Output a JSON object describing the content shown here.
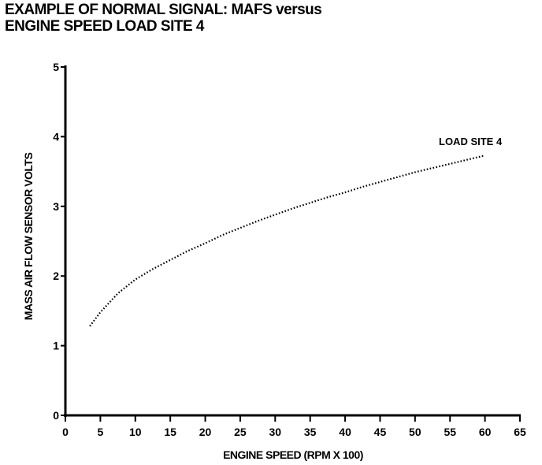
{
  "chart_data": {
    "type": "line",
    "title_line1": "EXAMPLE OF NORMAL SIGNAL: MAFS versus",
    "title_line2": "ENGINE SPEED LOAD SITE 4",
    "xlabel": "ENGINE SPEED (RPM X 100)",
    "ylabel": "MASS AIR FLOW SENSOR VOLTS",
    "xlim": [
      0,
      65
    ],
    "ylim": [
      0,
      5
    ],
    "xticks": [
      "0",
      "5",
      "10",
      "15",
      "20",
      "25",
      "30",
      "35",
      "40",
      "45",
      "50",
      "55",
      "60",
      "65"
    ],
    "yticks": [
      "0",
      "1",
      "2",
      "3",
      "4",
      "5"
    ],
    "grid": false,
    "series": [
      {
        "name": "LOAD SITE 4",
        "style": "dotted",
        "x": [
          3.5,
          5,
          7.5,
          10,
          12.5,
          15,
          17.5,
          20,
          22.5,
          25,
          27.5,
          30,
          32.5,
          35,
          37.5,
          40,
          42.5,
          45,
          47.5,
          50,
          52.5,
          55,
          57.5,
          60
        ],
        "y": [
          1.28,
          1.48,
          1.75,
          1.95,
          2.1,
          2.23,
          2.36,
          2.47,
          2.59,
          2.69,
          2.79,
          2.88,
          2.97,
          3.05,
          3.13,
          3.2,
          3.28,
          3.35,
          3.42,
          3.49,
          3.55,
          3.61,
          3.67,
          3.73
        ]
      }
    ]
  }
}
